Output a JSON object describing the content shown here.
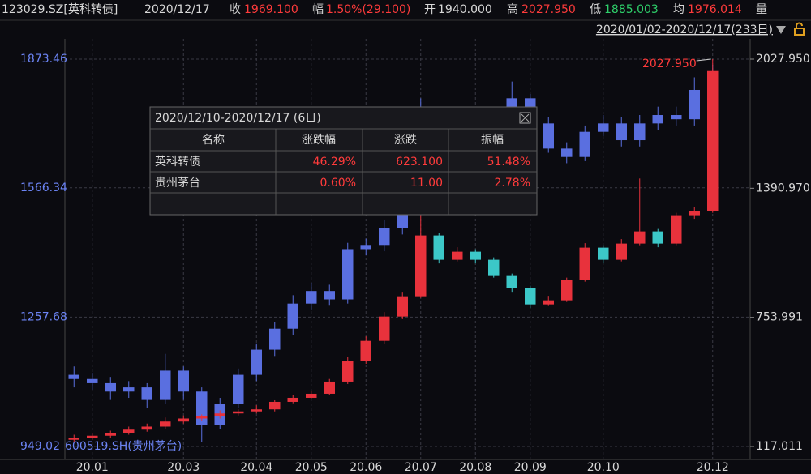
{
  "header": {
    "date": "2020/12/17",
    "close_label": "收",
    "close": "1969.100",
    "change_label": "幅",
    "change": "1.50%(29.100)",
    "open_label": "开",
    "open": "1940.000",
    "high_label": "高",
    "high": "2027.950",
    "low_label": "低",
    "low": "1885.003",
    "avg_label": "均",
    "avg": "1976.014",
    "vol_label": "量",
    "range": "2020/01/02-2020/12/17(233日)"
  },
  "popup": {
    "title": "2020/12/10-2020/12/17 (6日)",
    "columns": [
      "名称",
      "涨跌幅",
      "涨跌",
      "振幅"
    ],
    "rows": [
      [
        "英科转债",
        "46.29%",
        "623.100",
        "51.48%"
      ],
      [
        "贵州茅台",
        "0.60%",
        "11.00",
        "2.78%"
      ]
    ]
  },
  "chart_data": {
    "type": "candlestick",
    "categories": [
      null,
      "20.01",
      null,
      null,
      null,
      null,
      "20.03",
      null,
      null,
      null,
      "20.04",
      null,
      null,
      "20.05",
      null,
      null,
      "20.06",
      null,
      null,
      "20.07",
      null,
      null,
      "20.08",
      null,
      null,
      "20.09",
      null,
      null,
      null,
      "20.10",
      null,
      null,
      null,
      null,
      null,
      "20.12"
    ],
    "series": [
      {
        "name": "600519.SH(贵州茅台)",
        "axis": "y",
        "color": "#5a6fe0",
        "open": [
          1120,
          1110,
          1100,
          1080,
          1090,
          1060,
          1130,
          1080,
          1000,
          1050,
          1120,
          1180,
          1230,
          1290,
          1320,
          1300,
          1420,
          1430,
          1470,
          1550,
          1700,
          1700,
          1680,
          1720,
          1700,
          1780,
          1720,
          1660,
          1640,
          1700,
          1720,
          1680,
          1720,
          1740,
          1730,
          1800
        ],
        "high": [
          1140,
          1125,
          1115,
          1105,
          1100,
          1170,
          1140,
          1090,
          1065,
          1135,
          1195,
          1245,
          1310,
          1340,
          1335,
          1435,
          1445,
          1490,
          1570,
          1780,
          1730,
          1715,
          1740,
          1735,
          1820,
          1790,
          1735,
          1675,
          1715,
          1740,
          1735,
          1740,
          1760,
          1760,
          1830,
          1860
        ],
        "low": [
          1090,
          1085,
          1060,
          1065,
          1040,
          1050,
          1060,
          960,
          990,
          1040,
          1105,
          1165,
          1215,
          1275,
          1285,
          1290,
          1405,
          1415,
          1455,
          1535,
          1680,
          1665,
          1660,
          1690,
          1690,
          1705,
          1650,
          1625,
          1630,
          1690,
          1665,
          1665,
          1705,
          1715,
          1715,
          1780
        ],
        "close": [
          1110,
          1100,
          1080,
          1090,
          1060,
          1130,
          1080,
          1000,
          1050,
          1120,
          1180,
          1230,
          1290,
          1320,
          1300,
          1420,
          1430,
          1470,
          1550,
          1700,
          1700,
          1680,
          1720,
          1700,
          1780,
          1720,
          1660,
          1640,
          1700,
          1720,
          1680,
          1720,
          1740,
          1730,
          1800,
          1840
        ]
      },
      {
        "name": "123029.SZ[英科转债]",
        "axis": "y2",
        "up_color": "#e8323c",
        "down_color": "#3cc8c8",
        "open": [
          150,
          160,
          170,
          185,
          200,
          215,
          240,
          255,
          265,
          280,
          290,
          300,
          337,
          357,
          377,
          437,
          537,
          638,
          758,
          858,
          1158,
          1038,
          1078,
          1038,
          958,
          898,
          818,
          838,
          938,
          1098,
          1038,
          1118,
          1178,
          1118,
          1258,
          1278
        ],
        "high": [
          175,
          180,
          195,
          215,
          230,
          260,
          270,
          275,
          295,
          300,
          320,
          345,
          370,
          390,
          450,
          560,
          660,
          780,
          880,
          1258,
          1170,
          1100,
          1090,
          1050,
          970,
          910,
          860,
          950,
          1120,
          1110,
          1140,
          1439,
          1190,
          1270,
          1300,
          2027.95
        ],
        "low": [
          140,
          150,
          160,
          175,
          190,
          205,
          230,
          245,
          255,
          270,
          280,
          290,
          330,
          350,
          370,
          425,
          525,
          625,
          745,
          850,
          1020,
          1030,
          1020,
          950,
          880,
          800,
          810,
          830,
          930,
          1020,
          1030,
          1110,
          1100,
          1110,
          1240,
          1270
        ],
        "close": [
          160,
          170,
          185,
          200,
          215,
          240,
          255,
          265,
          280,
          290,
          300,
          337,
          357,
          377,
          437,
          537,
          638,
          758,
          858,
          1158,
          1038,
          1078,
          1038,
          958,
          898,
          818,
          838,
          938,
          1098,
          1038,
          1118,
          1178,
          1118,
          1258,
          1278,
          1969.1
        ]
      }
    ],
    "annotations": [
      {
        "text": "2027.950"
      }
    ],
    "ylim": [
      949.02,
      1873.46
    ],
    "yticks": [
      949.02,
      1257.68,
      1566.34,
      1873.46
    ],
    "y2lim": [
      117.011,
      2027.95
    ],
    "y2ticks": [
      117.011,
      753.991,
      {
        "value": 1390.97,
        "label": "1390.970"
      },
      {
        "value": 2027.95,
        "label": "2027.950"
      }
    ],
    "grid": true
  }
}
